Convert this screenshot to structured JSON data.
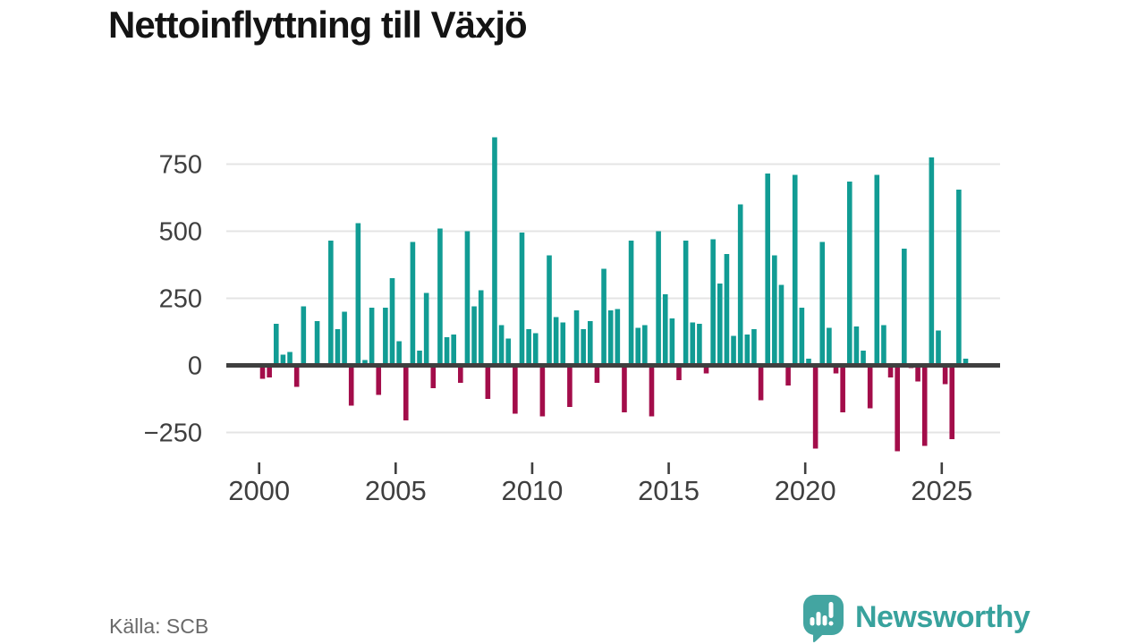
{
  "title": "Nettoinflyttning till Växjö",
  "source": {
    "text": "Källa: SCB"
  },
  "branding": {
    "wordmark": "Newsworthy",
    "icon": "bar-chart-speech-bubble-icon",
    "color": "#3da4a0"
  },
  "colors": {
    "positive_bar": "#119c94",
    "negative_bar": "#a30d4a",
    "gridline": "#e4e4e4",
    "zero_line": "#3f3f3f",
    "axis_text": "#3f3f3f"
  },
  "chart_data": {
    "type": "bar",
    "title": "Nettoinflyttning till Växjö",
    "source": "Källa: SCB",
    "frequency": "quarterly",
    "start": "2000-Q1",
    "end": "2025-Q4",
    "unit": "persons (net migration per quarter)",
    "ylim": [
      -350,
      900
    ],
    "grid": "horizontal",
    "legend": "none",
    "y_ticks": [
      {
        "label": "750",
        "value": 750
      },
      {
        "label": "500",
        "value": 500
      },
      {
        "label": "250",
        "value": 250
      },
      {
        "label": "0",
        "value": 0
      },
      {
        "label": "−250",
        "value": -250
      }
    ],
    "x_ticks": [
      {
        "label": "2000",
        "year": 2000
      },
      {
        "label": "2005",
        "year": 2005
      },
      {
        "label": "2010",
        "year": 2010
      },
      {
        "label": "2015",
        "year": 2015
      },
      {
        "label": "2020",
        "year": 2020
      },
      {
        "label": "2025",
        "year": 2025
      }
    ],
    "series": [
      {
        "name": "Nettoinflyttning",
        "values": [
          -50,
          -45,
          155,
          40,
          50,
          -80,
          220,
          0,
          165,
          0,
          465,
          135,
          200,
          -150,
          530,
          20,
          215,
          -110,
          215,
          325,
          90,
          -205,
          460,
          55,
          270,
          -85,
          510,
          105,
          115,
          -65,
          500,
          220,
          280,
          -125,
          850,
          150,
          100,
          -180,
          495,
          135,
          120,
          -190,
          410,
          180,
          160,
          -155,
          205,
          135,
          165,
          -65,
          360,
          205,
          210,
          -175,
          465,
          140,
          150,
          -190,
          500,
          265,
          175,
          -55,
          465,
          160,
          155,
          -30,
          470,
          305,
          415,
          110,
          600,
          115,
          135,
          -130,
          715,
          410,
          300,
          -75,
          710,
          215,
          25,
          -310,
          460,
          140,
          -30,
          -175,
          685,
          145,
          55,
          -160,
          710,
          150,
          -45,
          -320,
          435,
          -10,
          -60,
          -300,
          775,
          130,
          -70,
          -275,
          655,
          25
        ]
      }
    ]
  }
}
